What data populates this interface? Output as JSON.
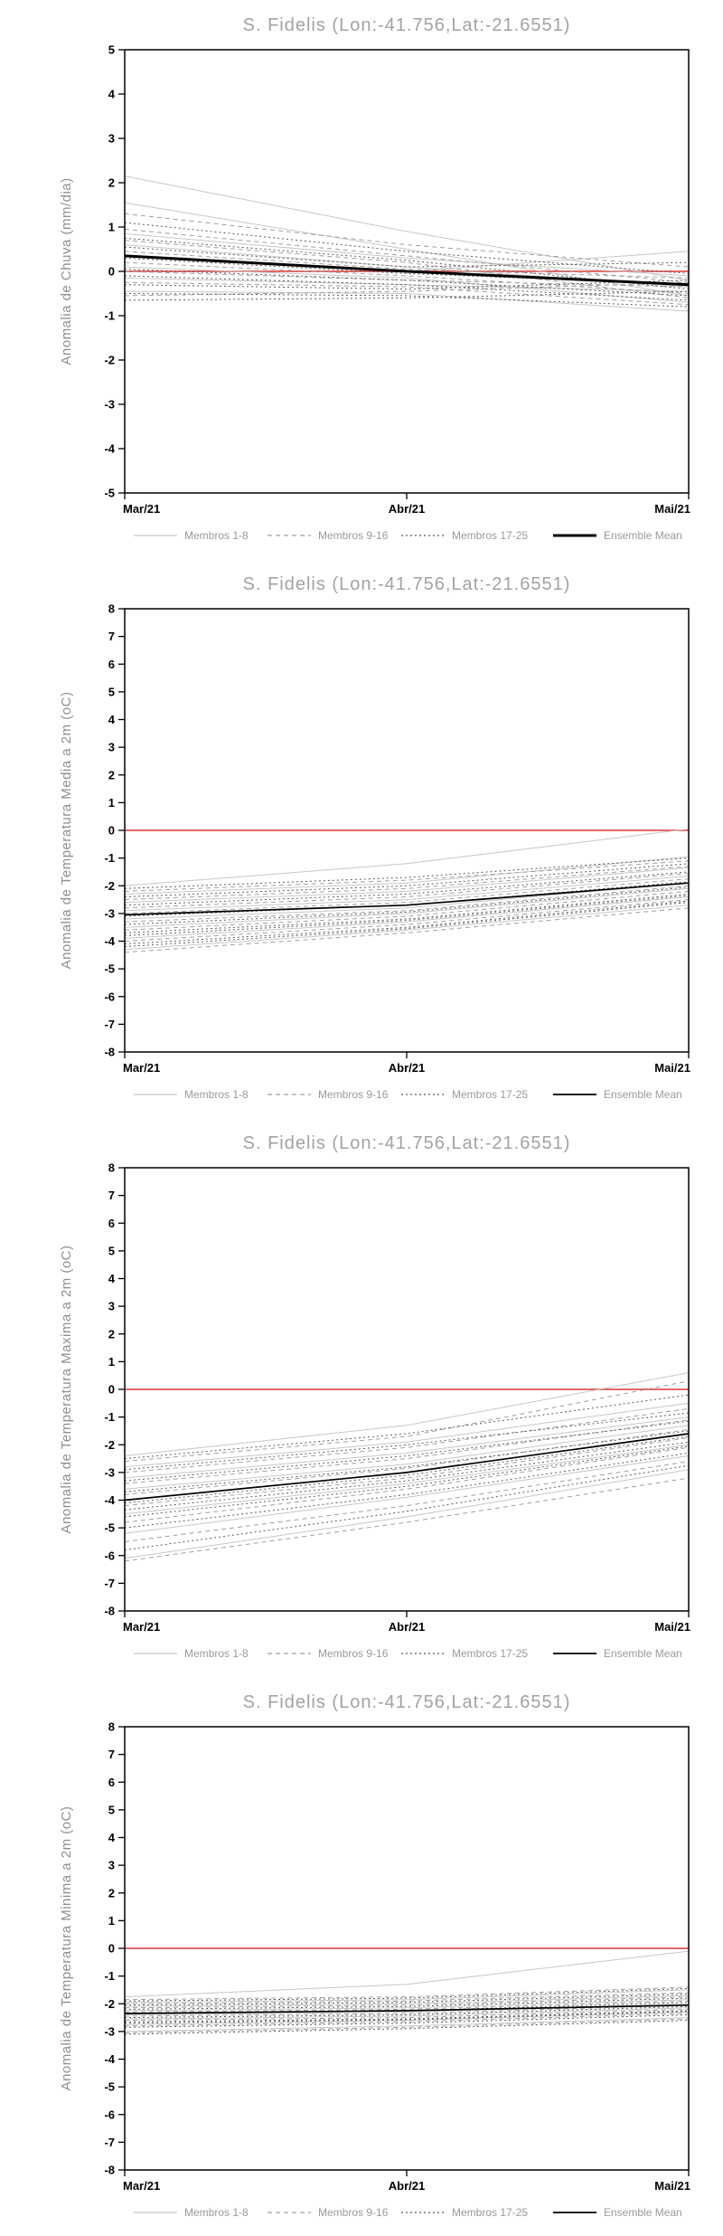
{
  "page": {
    "background": "#ffffff"
  },
  "legend": {
    "labels": [
      "Membros 1-8",
      "Membros 9-16",
      "Membros 17-25",
      "Ensemble Mean"
    ]
  },
  "styles": {
    "membros_1_8": {
      "color": "#c7c7c7",
      "dash": ""
    },
    "membros_9_16": {
      "color": "#a0a0a0",
      "dash": "5,4"
    },
    "membros_17_25": {
      "color": "#5c5c5c",
      "dash": "2,3"
    },
    "ensemble_mean": {
      "color": "#000000",
      "dash": ""
    },
    "zero_line": {
      "color": "#e0534f",
      "dash": ""
    }
  },
  "chart_data": [
    {
      "type": "line",
      "title": "S. Fidelis (Lon:-41.756,Lat:-21.6551)",
      "ylabel": "Anomalia de Chuva (mm/dia)",
      "xlabel": "",
      "x_labels": [
        "Mar/21",
        "Abr/21",
        "Mai/21"
      ],
      "ylim": [
        -5,
        5
      ],
      "ytick_step": 1,
      "zero_line": 0,
      "mean_width": 3,
      "grid": false,
      "legend_position": "bottom",
      "series": [
        {
          "name": "Membros 1-8",
          "group": "membros_1_8",
          "lines": [
            [
              2.15,
              0.9,
              -0.2
            ],
            [
              1.55,
              0.5,
              -0.55
            ],
            [
              0.85,
              0.3,
              -0.1
            ],
            [
              0.6,
              0.1,
              -0.35
            ],
            [
              0.35,
              0.0,
              0.45
            ],
            [
              0.1,
              -0.15,
              -0.7
            ],
            [
              -0.15,
              -0.3,
              -0.45
            ],
            [
              -0.45,
              -0.5,
              -0.9
            ]
          ]
        },
        {
          "name": "Membros 9-16",
          "group": "membros_9_16",
          "lines": [
            [
              1.3,
              0.6,
              0.1
            ],
            [
              0.95,
              0.35,
              -0.25
            ],
            [
              0.7,
              0.2,
              -0.6
            ],
            [
              0.45,
              0.05,
              -0.15
            ],
            [
              0.2,
              -0.1,
              -0.5
            ],
            [
              0.0,
              -0.2,
              -0.35
            ],
            [
              -0.25,
              -0.35,
              -0.75
            ],
            [
              -0.55,
              -0.45,
              -0.25
            ]
          ]
        },
        {
          "name": "Membros 17-25",
          "group": "membros_17_25",
          "lines": [
            [
              1.1,
              0.45,
              -0.05
            ],
            [
              0.75,
              0.25,
              -0.4
            ],
            [
              0.55,
              0.1,
              0.2
            ],
            [
              0.3,
              -0.05,
              -0.3
            ],
            [
              0.05,
              -0.2,
              -0.55
            ],
            [
              -0.1,
              -0.3,
              -0.65
            ],
            [
              -0.3,
              -0.4,
              -0.2
            ],
            [
              -0.5,
              -0.55,
              -0.8
            ],
            [
              -0.65,
              -0.6,
              -0.45
            ]
          ]
        },
        {
          "name": "Ensemble Mean",
          "group": "ensemble_mean",
          "lines": [
            [
              0.35,
              0.0,
              -0.3
            ]
          ]
        }
      ]
    },
    {
      "type": "line",
      "title": "S. Fidelis (Lon:-41.756,Lat:-21.6551)",
      "ylabel": "Anomalia de Temperatura Media a 2m (oC)",
      "xlabel": "",
      "x_labels": [
        "Mar/21",
        "Abr/21",
        "Mai/21"
      ],
      "ylim": [
        -8,
        8
      ],
      "ytick_step": 1,
      "zero_line": 0,
      "mean_width": 1.7,
      "grid": false,
      "legend_position": "bottom",
      "series": [
        {
          "name": "Membros 1-8",
          "group": "membros_1_8",
          "lines": [
            [
              -2.0,
              -1.2,
              0.05
            ],
            [
              -2.3,
              -1.9,
              -0.95
            ],
            [
              -2.6,
              -2.2,
              -1.35
            ],
            [
              -2.9,
              -2.5,
              -1.65
            ],
            [
              -3.2,
              -2.8,
              -1.9
            ],
            [
              -3.5,
              -3.0,
              -2.1
            ],
            [
              -3.9,
              -3.3,
              -2.4
            ],
            [
              -4.3,
              -3.6,
              -2.7
            ]
          ]
        },
        {
          "name": "Membros 9-16",
          "group": "membros_9_16",
          "lines": [
            [
              -2.2,
              -1.8,
              -1.1
            ],
            [
              -2.5,
              -2.1,
              -1.3
            ],
            [
              -2.8,
              -2.4,
              -1.55
            ],
            [
              -3.0,
              -2.6,
              -1.75
            ],
            [
              -3.3,
              -2.9,
              -2.0
            ],
            [
              -3.6,
              -3.1,
              -2.2
            ],
            [
              -4.0,
              -3.4,
              -2.5
            ],
            [
              -4.4,
              -3.7,
              -2.8
            ]
          ]
        },
        {
          "name": "Membros 17-25",
          "group": "membros_17_25",
          "lines": [
            [
              -2.1,
              -1.7,
              -1.0
            ],
            [
              -2.4,
              -2.0,
              -1.2
            ],
            [
              -2.7,
              -2.3,
              -1.5
            ],
            [
              -3.1,
              -2.7,
              -1.85
            ],
            [
              -3.4,
              -2.95,
              -2.05
            ],
            [
              -3.7,
              -3.2,
              -2.3
            ],
            [
              -4.1,
              -3.5,
              -2.55
            ],
            [
              -4.2,
              -3.55,
              -2.6
            ],
            [
              -3.8,
              -3.25,
              -2.35
            ]
          ]
        },
        {
          "name": "Ensemble Mean",
          "group": "ensemble_mean",
          "lines": [
            [
              -3.05,
              -2.7,
              -1.9
            ]
          ]
        }
      ]
    },
    {
      "type": "line",
      "title": "S. Fidelis (Lon:-41.756,Lat:-21.6551)",
      "ylabel": "Anomalia de Temperatura Maxima a 2m (oC)",
      "xlabel": "",
      "x_labels": [
        "Mar/21",
        "Abr/21",
        "Mai/21"
      ],
      "ylim": [
        -8,
        8
      ],
      "ytick_step": 1,
      "zero_line": 0,
      "mean_width": 1.7,
      "grid": false,
      "legend_position": "bottom",
      "series": [
        {
          "name": "Membros 1-8",
          "group": "membros_1_8",
          "lines": [
            [
              -2.4,
              -1.3,
              0.6
            ],
            [
              -2.8,
              -1.9,
              -0.5
            ],
            [
              -3.2,
              -2.3,
              -1.0
            ],
            [
              -3.6,
              -2.7,
              -1.3
            ],
            [
              -4.0,
              -3.0,
              -1.6
            ],
            [
              -4.5,
              -3.4,
              -2.0
            ],
            [
              -5.2,
              -3.9,
              -2.4
            ],
            [
              -6.1,
              -4.6,
              -2.9
            ]
          ]
        },
        {
          "name": "Membros 9-16",
          "group": "membros_9_16",
          "lines": [
            [
              -2.6,
              -1.7,
              0.3
            ],
            [
              -3.0,
              -2.1,
              -0.7
            ],
            [
              -3.4,
              -2.5,
              -1.1
            ],
            [
              -3.8,
              -2.85,
              -1.45
            ],
            [
              -4.2,
              -3.2,
              -1.75
            ],
            [
              -4.8,
              -3.6,
              -2.1
            ],
            [
              -5.5,
              -4.2,
              -2.6
            ],
            [
              -6.2,
              -4.8,
              -3.2
            ]
          ]
        },
        {
          "name": "Membros 17-25",
          "group": "membros_17_25",
          "lines": [
            [
              -2.5,
              -1.6,
              -0.2
            ],
            [
              -2.9,
              -2.0,
              -0.85
            ],
            [
              -3.3,
              -2.4,
              -1.15
            ],
            [
              -3.7,
              -2.8,
              -1.5
            ],
            [
              -4.1,
              -3.1,
              -1.7
            ],
            [
              -4.6,
              -3.5,
              -2.05
            ],
            [
              -5.0,
              -3.8,
              -2.3
            ],
            [
              -5.8,
              -4.4,
              -2.75
            ],
            [
              -4.35,
              -3.3,
              -1.9
            ]
          ]
        },
        {
          "name": "Ensemble Mean",
          "group": "ensemble_mean",
          "lines": [
            [
              -4.0,
              -3.0,
              -1.6
            ]
          ]
        }
      ]
    },
    {
      "type": "line",
      "title": "S. Fidelis (Lon:-41.756,Lat:-21.6551)",
      "ylabel": "Anomalia de Temperatura Minima a 2m (oC)",
      "xlabel": "",
      "x_labels": [
        "Mar/21",
        "Abr/21",
        "Mai/21"
      ],
      "ylim": [
        -8,
        8
      ],
      "ytick_step": 1,
      "zero_line": 0,
      "mean_width": 1.7,
      "grid": false,
      "legend_position": "bottom",
      "series": [
        {
          "name": "Membros 1-8",
          "group": "membros_1_8",
          "lines": [
            [
              -1.75,
              -1.3,
              -0.1
            ],
            [
              -1.95,
              -1.85,
              -1.5
            ],
            [
              -2.1,
              -2.0,
              -1.7
            ],
            [
              -2.25,
              -2.15,
              -1.85
            ],
            [
              -2.4,
              -2.3,
              -2.0
            ],
            [
              -2.55,
              -2.45,
              -2.15
            ],
            [
              -2.75,
              -2.6,
              -2.3
            ],
            [
              -3.0,
              -2.8,
              -2.5
            ]
          ]
        },
        {
          "name": "Membros 9-16",
          "group": "membros_9_16",
          "lines": [
            [
              -1.85,
              -1.75,
              -1.4
            ],
            [
              -2.0,
              -1.9,
              -1.6
            ],
            [
              -2.15,
              -2.05,
              -1.75
            ],
            [
              -2.3,
              -2.2,
              -1.9
            ],
            [
              -2.45,
              -2.35,
              -2.05
            ],
            [
              -2.6,
              -2.5,
              -2.2
            ],
            [
              -2.8,
              -2.65,
              -2.35
            ],
            [
              -3.05,
              -2.85,
              -2.55
            ]
          ]
        },
        {
          "name": "Membros 17-25",
          "group": "membros_17_25",
          "lines": [
            [
              -1.9,
              -1.8,
              -1.45
            ],
            [
              -2.05,
              -1.95,
              -1.65
            ],
            [
              -2.2,
              -2.1,
              -1.8
            ],
            [
              -2.35,
              -2.25,
              -1.95
            ],
            [
              -2.5,
              -2.4,
              -2.1
            ],
            [
              -2.65,
              -2.55,
              -2.25
            ],
            [
              -2.85,
              -2.7,
              -2.4
            ],
            [
              -3.1,
              -2.9,
              -2.6
            ],
            [
              -2.7,
              -2.58,
              -2.28
            ]
          ]
        },
        {
          "name": "Ensemble Mean",
          "group": "ensemble_mean",
          "lines": [
            [
              -2.35,
              -2.25,
              -2.05
            ]
          ]
        }
      ]
    }
  ]
}
